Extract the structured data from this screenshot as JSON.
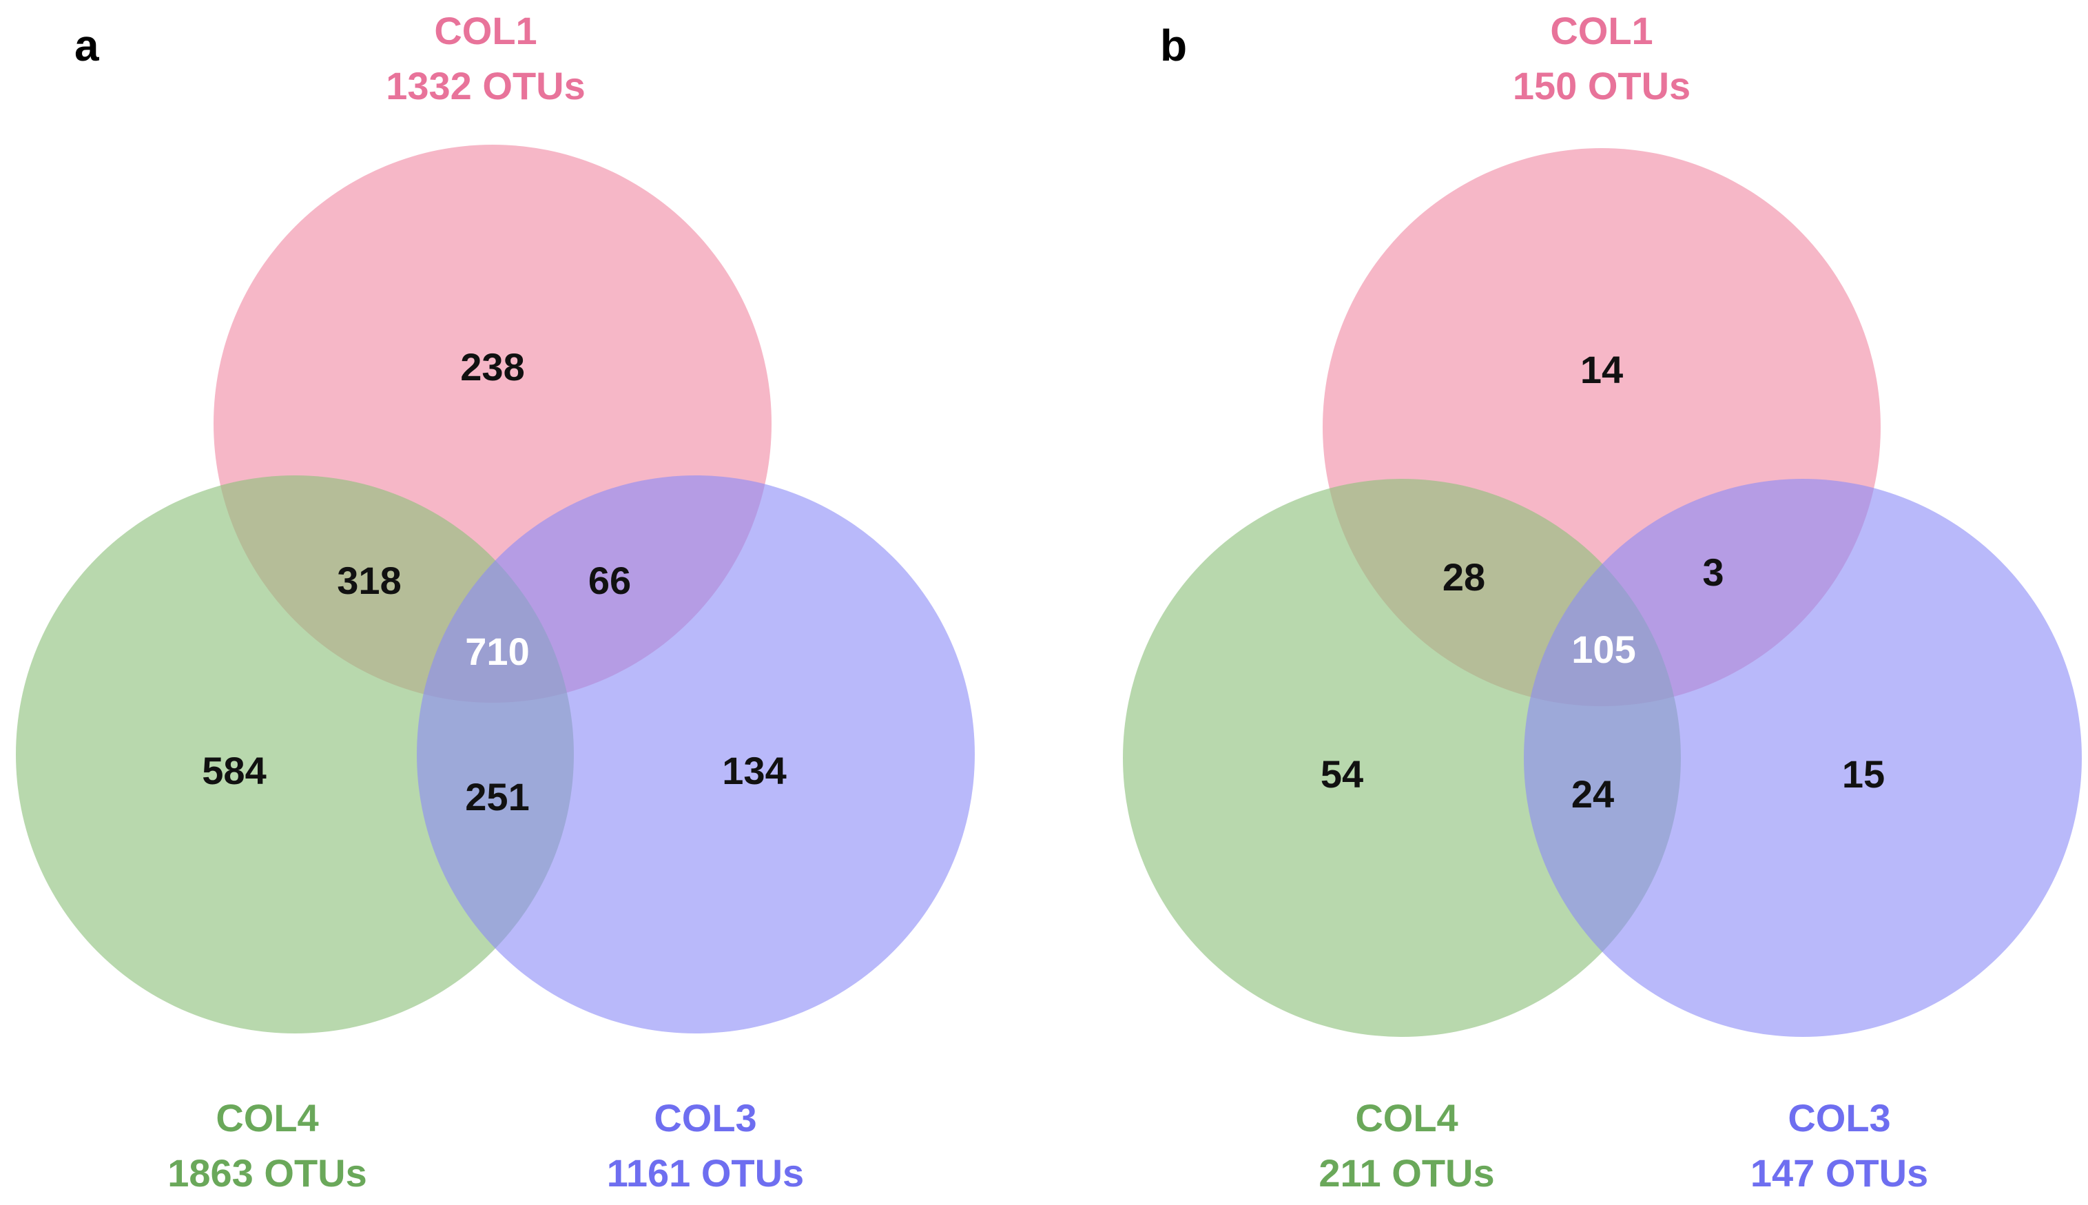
{
  "figure": {
    "panels": [
      {
        "letter": "a",
        "sets": [
          {
            "name": "COL1",
            "total": "1332 OTUs",
            "color": "#f08aa5"
          },
          {
            "name": "COL4",
            "total": "1863 OTUs",
            "color": "#8cc07a"
          },
          {
            "name": "COL3",
            "total": "1161 OTUs",
            "color": "#8a8af7"
          }
        ],
        "regions": {
          "col1_only": "238",
          "col1_col4": "318",
          "col1_col3": "66",
          "all_three": "710",
          "col4_only": "584",
          "col4_col3": "251",
          "col3_only": "134"
        }
      },
      {
        "letter": "b",
        "sets": [
          {
            "name": "COL1",
            "total": "150 OTUs",
            "color": "#f08aa5"
          },
          {
            "name": "COL4",
            "total": "211 OTUs",
            "color": "#8cc07a"
          },
          {
            "name": "COL3",
            "total": "147 OTUs",
            "color": "#8a8af7"
          }
        ],
        "regions": {
          "col1_only": "14",
          "col1_col4": "28",
          "col1_col3": "3",
          "all_three": "105",
          "col4_only": "54",
          "col4_col3": "24",
          "col3_only": "15"
        }
      }
    ],
    "colors": {
      "col1_label": "#e8739a",
      "col4_label": "#6aa85a",
      "col3_label": "#6e6ef0",
      "count_text": "#111111",
      "center_text": "#ffffff"
    }
  }
}
